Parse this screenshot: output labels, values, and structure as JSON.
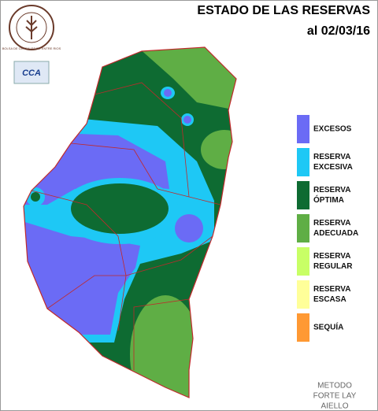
{
  "header": {
    "title": "ESTADO DE LAS RESERVAS",
    "date": "al 02/03/16"
  },
  "logos": {
    "bolsa": "BOLSA DE CEREALES DE ENTRE RIOS",
    "cca": "CCA"
  },
  "legend": [
    {
      "lines": [
        "EXCESOS"
      ],
      "color": "#6b6bf5"
    },
    {
      "lines": [
        "RESERVA",
        "EXCESIVA"
      ],
      "color": "#1ec8f5"
    },
    {
      "lines": [
        "RESERVA",
        "ÓPTIMA"
      ],
      "color": "#0e6b32"
    },
    {
      "lines": [
        "RESERVA",
        "ADECUADA"
      ],
      "color": "#5fae45"
    },
    {
      "lines": [
        "RESERVA",
        "REGULAR"
      ],
      "color": "#c8ff66"
    },
    {
      "lines": [
        "RESERVA",
        "ESCASA"
      ],
      "color": "#ffff99"
    },
    {
      "lines": [
        "SEQUÍA"
      ],
      "color": "#ff9933"
    }
  ],
  "method": [
    "METODO",
    "FORTE LAY",
    "AIELLO"
  ]
}
